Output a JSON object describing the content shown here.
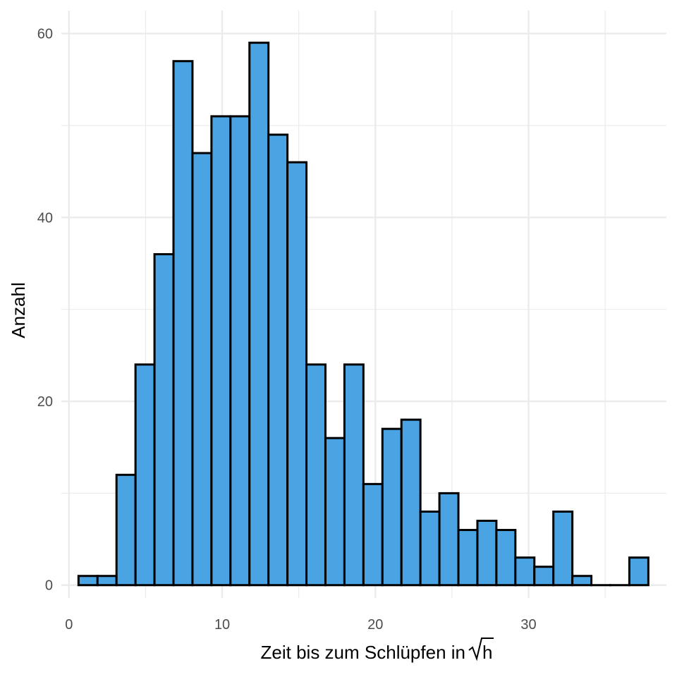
{
  "chart_data": {
    "type": "bar",
    "subtype": "histogram",
    "xlabel": "Zeit bis zum Schlüpfen in",
    "xlabel_unit": "h",
    "ylabel": "Anzahl",
    "xlim": [
      -0.5,
      39.0
    ],
    "ylim": [
      -1.4,
      62.5
    ],
    "x_ticks": [
      0,
      10,
      20,
      30
    ],
    "y_ticks": [
      0,
      20,
      40,
      60
    ],
    "grid": true,
    "bin_width": 1.24,
    "bins": [
      {
        "start": 0.62,
        "end": 1.86,
        "count": 1
      },
      {
        "start": 1.86,
        "end": 3.1,
        "count": 1
      },
      {
        "start": 3.1,
        "end": 4.34,
        "count": 12
      },
      {
        "start": 4.34,
        "end": 5.58,
        "count": 24
      },
      {
        "start": 5.58,
        "end": 6.82,
        "count": 36
      },
      {
        "start": 6.82,
        "end": 8.06,
        "count": 57
      },
      {
        "start": 8.06,
        "end": 9.3,
        "count": 47
      },
      {
        "start": 9.3,
        "end": 10.54,
        "count": 51
      },
      {
        "start": 10.54,
        "end": 11.78,
        "count": 51
      },
      {
        "start": 11.78,
        "end": 13.02,
        "count": 59
      },
      {
        "start": 13.02,
        "end": 14.26,
        "count": 49
      },
      {
        "start": 14.26,
        "end": 15.5,
        "count": 46
      },
      {
        "start": 15.5,
        "end": 16.74,
        "count": 24
      },
      {
        "start": 16.74,
        "end": 17.98,
        "count": 16
      },
      {
        "start": 17.98,
        "end": 19.22,
        "count": 24
      },
      {
        "start": 19.22,
        "end": 20.46,
        "count": 11
      },
      {
        "start": 20.46,
        "end": 21.7,
        "count": 17
      },
      {
        "start": 21.7,
        "end": 22.94,
        "count": 18
      },
      {
        "start": 22.94,
        "end": 24.18,
        "count": 8
      },
      {
        "start": 24.18,
        "end": 25.42,
        "count": 10
      },
      {
        "start": 25.42,
        "end": 26.66,
        "count": 6
      },
      {
        "start": 26.66,
        "end": 27.9,
        "count": 7
      },
      {
        "start": 27.9,
        "end": 29.14,
        "count": 6
      },
      {
        "start": 29.14,
        "end": 30.38,
        "count": 3
      },
      {
        "start": 30.38,
        "end": 31.62,
        "count": 2
      },
      {
        "start": 31.62,
        "end": 32.86,
        "count": 8
      },
      {
        "start": 32.86,
        "end": 34.1,
        "count": 1
      },
      {
        "start": 34.1,
        "end": 35.34,
        "count": 0
      },
      {
        "start": 35.34,
        "end": 36.58,
        "count": 0
      },
      {
        "start": 36.58,
        "end": 37.82,
        "count": 3
      }
    ],
    "colors": {
      "fill": "#4aa3e2",
      "outline": "#000000",
      "grid": "#ebebeb"
    }
  }
}
